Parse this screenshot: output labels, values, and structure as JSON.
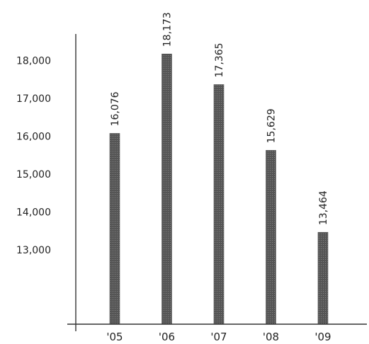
{
  "chart_data": {
    "type": "bar",
    "categories": [
      "'05",
      "'06",
      "'07",
      "'08",
      "'09"
    ],
    "values": [
      16076,
      18173,
      17365,
      15629,
      13464
    ],
    "data_labels": [
      "16,076",
      "18,173",
      "17,365",
      "15,629",
      "13,464"
    ],
    "y_ticks": [
      13000,
      14000,
      15000,
      16000,
      17000,
      18000
    ],
    "y_tick_labels": [
      "13,000",
      "14,000",
      "15,000",
      "16,000",
      "17,000",
      "18,000"
    ],
    "ylim": [
      10000,
      19000
    ],
    "title": "",
    "xlabel": "",
    "ylabel": "",
    "grid": false,
    "legend": "none",
    "bar_color": "#555555",
    "axis_color": "#333333"
  }
}
